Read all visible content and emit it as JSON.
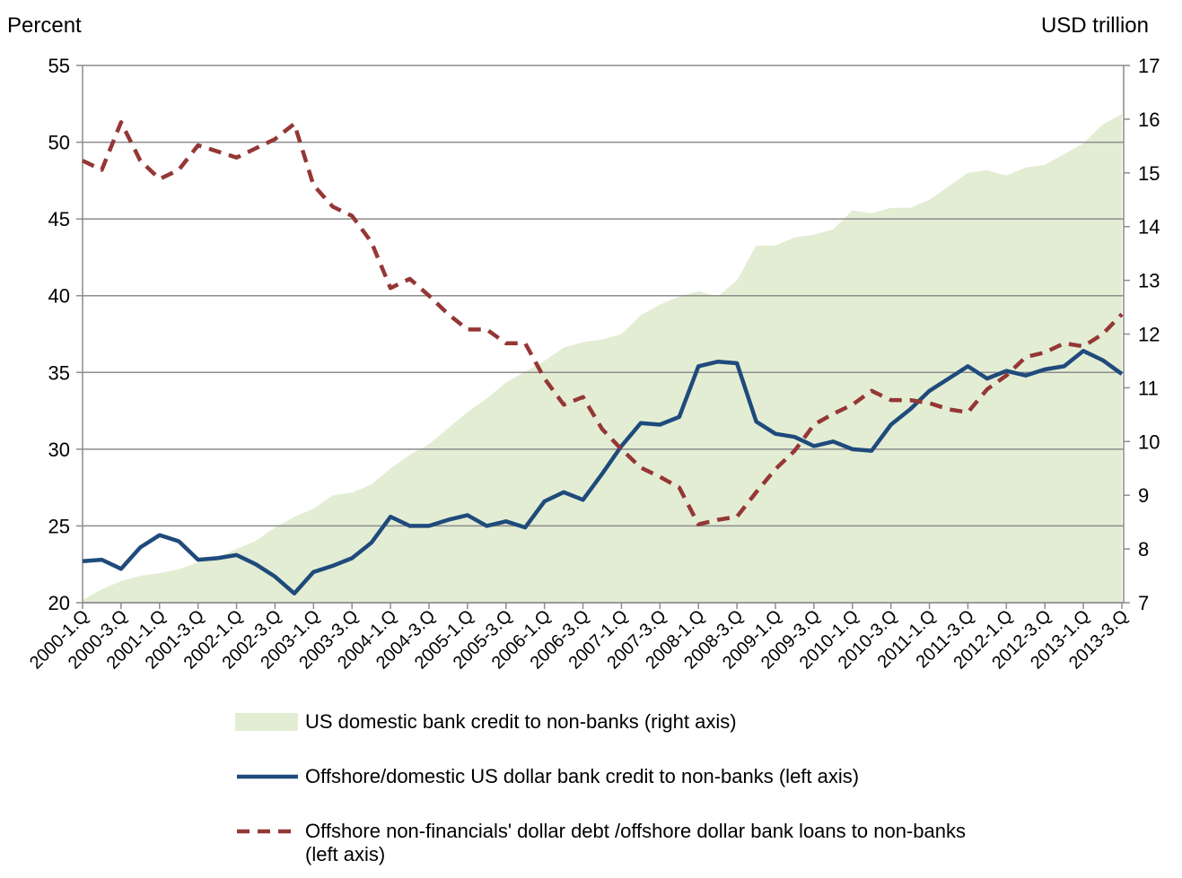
{
  "chart_data": {
    "type": "line",
    "y_label": "Percent",
    "y2_label": "USD trillion",
    "categories": [
      "2000-1.Q",
      null,
      "2000-3.Q",
      null,
      "2001-1.Q",
      null,
      "2001-3.Q",
      null,
      "2002-1.Q",
      null,
      "2002-3.Q",
      null,
      "2003-1.Q",
      null,
      "2003-3.Q",
      null,
      "2004-1.Q",
      null,
      "2004-3.Q",
      null,
      "2005-1.Q",
      null,
      "2005-3.Q",
      null,
      "2006-1.Q",
      null,
      "2006-3.Q",
      null,
      "2007-1.Q",
      null,
      "2007-3.Q",
      null,
      "2008-1.Q",
      null,
      "2008-3.Q",
      null,
      "2009-1.Q",
      null,
      "2009-3.Q",
      null,
      "2010-1.Q",
      null,
      "2010-3.Q",
      null,
      "2011-1.Q",
      null,
      "2011-3.Q",
      null,
      "2012-1.Q",
      null,
      "2012-3.Q",
      null,
      "2013-1.Q",
      null,
      "2013-3.Q"
    ],
    "ylim": [
      20,
      55
    ],
    "yticks": [
      20,
      25,
      30,
      35,
      40,
      45,
      50,
      55
    ],
    "y2lim": [
      7,
      17
    ],
    "y2ticks": [
      7,
      8,
      9,
      10,
      11,
      12,
      13,
      14,
      15,
      16,
      17
    ],
    "grid": true,
    "series": [
      {
        "name": "US domestic bank credit to non-banks (right axis)",
        "color": "#e3edd4",
        "axis": "y2",
        "line_style": "area",
        "values": [
          7.05,
          7.25,
          7.4,
          7.5,
          7.55,
          7.62,
          7.75,
          7.85,
          8.0,
          8.15,
          8.4,
          8.6,
          8.75,
          9.0,
          9.05,
          9.2,
          9.5,
          9.75,
          9.95,
          10.25,
          10.55,
          10.8,
          11.1,
          11.3,
          11.5,
          11.75,
          11.85,
          11.9,
          12.0,
          12.35,
          12.55,
          12.7,
          12.8,
          12.7,
          13.0,
          13.65,
          13.65,
          13.8,
          13.85,
          13.95,
          14.3,
          14.25,
          14.35,
          14.35,
          14.5,
          14.75,
          15.0,
          15.05,
          14.95,
          15.1,
          15.15,
          15.35,
          15.55,
          15.9,
          16.1
        ]
      },
      {
        "name": "Offshore/domestic US dollar bank credit to non-banks (left axis)",
        "color": "#1f4a7c",
        "line_style": "solid",
        "values": [
          22.7,
          22.8,
          22.2,
          23.6,
          24.4,
          24.0,
          22.8,
          22.9,
          23.1,
          22.5,
          21.7,
          20.6,
          22.0,
          22.4,
          22.9,
          23.9,
          25.6,
          25.0,
          25.0,
          25.4,
          25.7,
          25.0,
          25.3,
          24.9,
          26.6,
          27.2,
          26.7,
          28.4,
          30.2,
          31.7,
          31.6,
          32.1,
          35.4,
          35.7,
          35.6,
          31.8,
          31.0,
          30.8,
          30.2,
          30.5,
          30.0,
          29.9,
          31.6,
          32.6,
          33.8,
          34.6,
          35.4,
          34.6,
          35.1,
          34.8,
          35.2,
          35.4,
          36.4,
          35.8,
          34.9
        ]
      },
      {
        "name": "Offshore non-financials' dollar debt /offshore dollar bank loans to non-banks (left axis)",
        "color": "#953735",
        "line_style": "dashed",
        "values": [
          48.8,
          48.2,
          51.3,
          48.8,
          47.6,
          48.2,
          49.8,
          49.4,
          49.0,
          49.6,
          50.2,
          51.2,
          47.2,
          45.8,
          45.2,
          43.5,
          40.5,
          41.1,
          40.0,
          38.8,
          37.8,
          37.8,
          36.9,
          36.9,
          34.6,
          32.9,
          33.4,
          31.3,
          30.0,
          28.8,
          28.2,
          27.5,
          25.1,
          25.4,
          25.6,
          27.2,
          28.7,
          29.9,
          31.6,
          32.3,
          32.9,
          33.8,
          33.2,
          33.2,
          33.0,
          32.6,
          32.4,
          33.9,
          34.8,
          36.0,
          36.3,
          36.9,
          36.7,
          37.5,
          38.8
        ]
      }
    ]
  }
}
